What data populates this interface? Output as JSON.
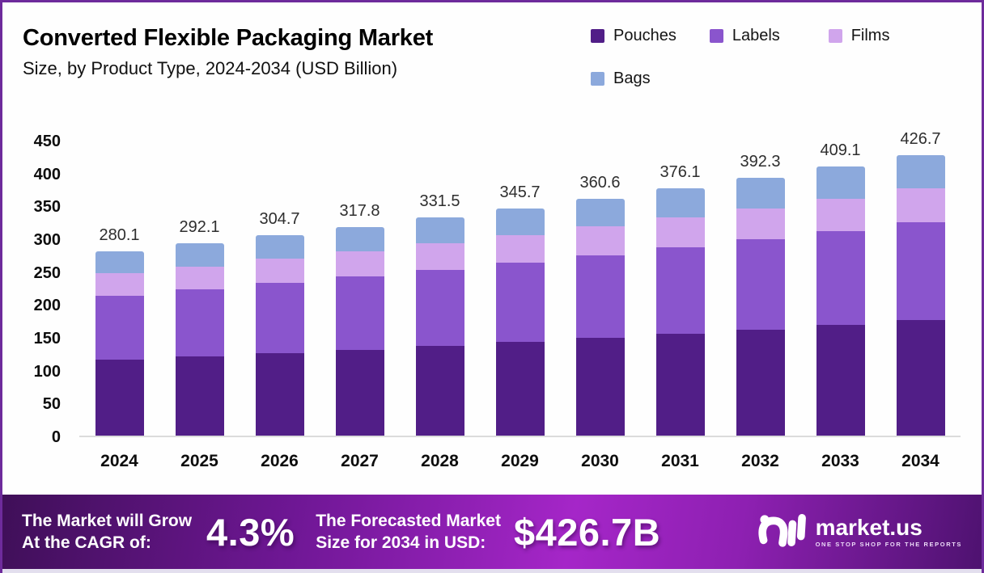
{
  "header": {
    "title": "Converted Flexible Packaging Market",
    "subtitle": "Size, by Product Type, 2024-2034 (USD Billion)"
  },
  "chart_data": {
    "type": "bar",
    "stacked": true,
    "title": "Converted Flexible Packaging Market Size, by Product Type, 2024-2034 (USD Billion)",
    "categories": [
      "2024",
      "2025",
      "2026",
      "2027",
      "2028",
      "2029",
      "2030",
      "2031",
      "2032",
      "2033",
      "2034"
    ],
    "series": [
      {
        "name": "Pouches",
        "color": "#511e87",
        "values": [
          115.1,
          120.1,
          125.2,
          130.6,
          136.2,
          142.1,
          148.2,
          154.6,
          161.2,
          168.1,
          175.4
        ]
      },
      {
        "name": "Labels",
        "color": "#8a55cd",
        "values": [
          98.0,
          102.2,
          106.6,
          111.2,
          116.0,
          121.0,
          126.2,
          131.6,
          137.3,
          143.2,
          149.3
        ]
      },
      {
        "name": "Films",
        "color": "#d0a5ec",
        "values": [
          33.9,
          35.3,
          36.9,
          38.5,
          40.1,
          41.8,
          43.6,
          45.5,
          47.5,
          49.5,
          51.6
        ]
      },
      {
        "name": "Bags",
        "color": "#8ca9dc",
        "values": [
          33.1,
          34.5,
          36.0,
          37.5,
          39.2,
          40.8,
          42.6,
          44.4,
          46.3,
          48.3,
          50.4
        ]
      }
    ],
    "totals": [
      "280.1",
      "292.1",
      "304.7",
      "317.8",
      "331.5",
      "345.7",
      "360.6",
      "376.1",
      "392.3",
      "409.1",
      "426.7"
    ],
    "ylim": [
      0,
      450
    ],
    "yticks": [
      0,
      50,
      100,
      150,
      200,
      250,
      300,
      350,
      400,
      450
    ],
    "grid": false,
    "legend_position": "top-right",
    "xlabel": "",
    "ylabel": ""
  },
  "banner": {
    "growth_label_line1": "The Market will Grow",
    "growth_label_line2": "At the CAGR of:",
    "cagr_value": "4.3%",
    "forecast_label_line1": "The Forecasted Market",
    "forecast_label_line2": "Size for 2034 in USD:",
    "forecast_value": "$426.7B",
    "brand": {
      "name": "market.us",
      "tagline": "ONE STOP SHOP FOR THE REPORTS"
    }
  },
  "colors": {
    "frame_border": "#6e2b9c",
    "banner_gradient_dark": "#3f0f58",
    "banner_gradient_bright": "#a526c8",
    "baseline": "#dbdbdb"
  }
}
